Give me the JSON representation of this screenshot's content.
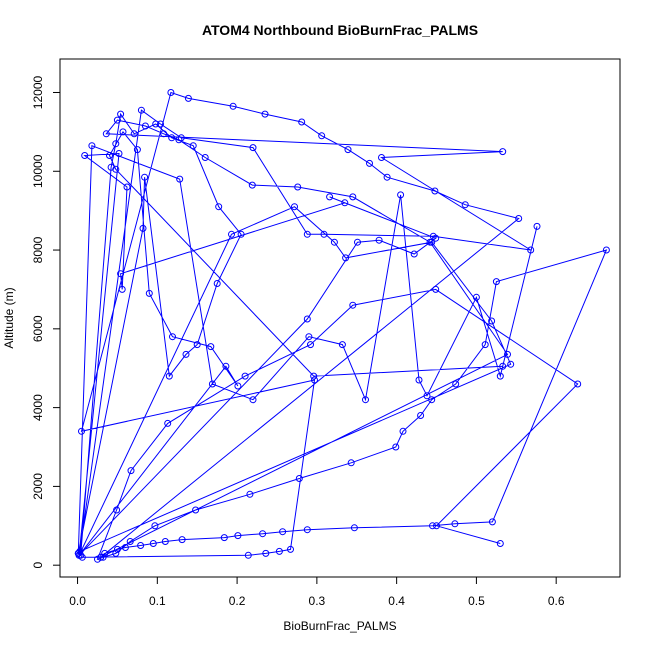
{
  "chart_data": {
    "type": "scatter",
    "title": "ATOM4 Northbound BioBurnFrac_PALMS",
    "xlabel": "BioBurnFrac_PALMS",
    "ylabel": "Altitude (m)",
    "xlim": [
      -0.022,
      0.68
    ],
    "ylim": [
      -300,
      12850
    ],
    "xticks": [
      0.0,
      0.1,
      0.2,
      0.3,
      0.4,
      0.5,
      0.6
    ],
    "xtick_labels": [
      "0.0",
      "0.1",
      "0.2",
      "0.3",
      "0.4",
      "0.5",
      "0.6"
    ],
    "yticks": [
      0,
      2000,
      4000,
      6000,
      8000,
      10000,
      12000
    ],
    "ytick_labels": [
      "0",
      "2000",
      "4000",
      "6000",
      "8000",
      "10000",
      "12000"
    ],
    "grid": false,
    "connected": true,
    "color": "#0000ff",
    "series": [
      {
        "x": [
          0.001,
          0.004,
          0.042,
          0.048,
          0.054,
          0.071,
          0.098,
          0.118,
          0.145,
          0.177,
          0.205,
          0.175,
          0.15,
          0.136,
          0.115,
          0.084,
          0.082,
          0.001,
          0.018,
          0.128,
          0.169,
          0.22,
          0.29,
          0.332,
          0.361,
          0.405,
          0.428,
          0.438,
          0.5,
          0.53,
          0.576,
          0.533,
          0.296,
          0.048,
          0.04,
          0.057,
          0.075,
          0.09,
          0.119,
          0.167,
          0.201,
          0.186,
          0.002,
          0.288,
          0.351,
          0.378,
          0.422,
          0.449,
          0.316,
          0.335,
          0.054,
          0.056,
          0.062,
          0.009,
          0.052,
          0.002,
          0.193,
          0.272,
          0.322,
          0.336,
          0.444,
          0.519,
          0.543,
          0.003,
          0.08,
          0.104,
          0.13,
          0.22,
          0.288,
          0.309,
          0.446,
          0.568,
          0.381,
          0.533,
          0.036,
          0.05,
          0.085,
          0.108,
          0.127,
          0.16,
          0.219,
          0.276,
          0.345,
          0.442,
          0.539,
          0.029,
          0.006,
          0.214,
          0.236,
          0.253,
          0.267,
          0.297,
          0.005,
          0.117,
          0.139,
          0.195,
          0.235,
          0.281,
          0.306,
          0.339,
          0.366,
          0.388,
          0.448,
          0.486,
          0.553,
          0.029,
          0.034,
          0.05,
          0.06,
          0.079,
          0.095,
          0.11,
          0.131,
          0.184,
          0.201,
          0.232,
          0.257,
          0.288,
          0.347,
          0.445,
          0.473,
          0.52,
          0.663,
          0.525,
          0.511,
          0.474,
          0.444,
          0.43,
          0.408,
          0.399,
          0.343,
          0.278,
          0.216,
          0.148,
          0.097,
          0.066,
          0.048,
          0.032,
          0.025,
          0.049,
          0.067,
          0.113,
          0.21,
          0.292,
          0.345,
          0.449,
          0.627,
          0.45,
          0.53
        ],
        "y": [
          300,
          250,
          10100,
          10700,
          11450,
          10950,
          11200,
          10850,
          10650,
          9100,
          8400,
          7150,
          5600,
          5350,
          4800,
          9850,
          8550,
          300,
          10650,
          9800,
          4600,
          4200,
          5800,
          5600,
          4200,
          9400,
          4700,
          4300,
          6800,
          4800,
          8600,
          5050,
          4800,
          10050,
          10400,
          11000,
          10550,
          6900,
          5800,
          5550,
          4550,
          5050,
          250,
          6250,
          8200,
          8250,
          7900,
          8300,
          9350,
          9200,
          7400,
          7000,
          9600,
          10400,
          10450,
          250,
          8400,
          9100,
          8200,
          7800,
          8200,
          6200,
          5100,
          350,
          11550,
          11200,
          10850,
          10600,
          8400,
          8400,
          8350,
          8000,
          10350,
          10500,
          10950,
          11300,
          11150,
          10950,
          10800,
          10350,
          9650,
          9600,
          9350,
          8200,
          5350,
          200,
          200,
          250,
          300,
          350,
          400,
          4700,
          3400,
          12000,
          11850,
          11650,
          11450,
          11250,
          10900,
          10550,
          10200,
          9850,
          9500,
          9150,
          8800,
          200,
          300,
          400,
          450,
          500,
          550,
          600,
          650,
          700,
          750,
          800,
          850,
          900,
          950,
          1000,
          1050,
          1100,
          8000,
          7200,
          5600,
          4600,
          4200,
          3800,
          3400,
          3000,
          2600,
          2200,
          1800,
          1400,
          1000,
          600,
          300,
          200,
          150,
          1400,
          2400,
          3600,
          4800,
          5600,
          6600,
          7000,
          4600,
          1000,
          550
        ]
      }
    ]
  }
}
